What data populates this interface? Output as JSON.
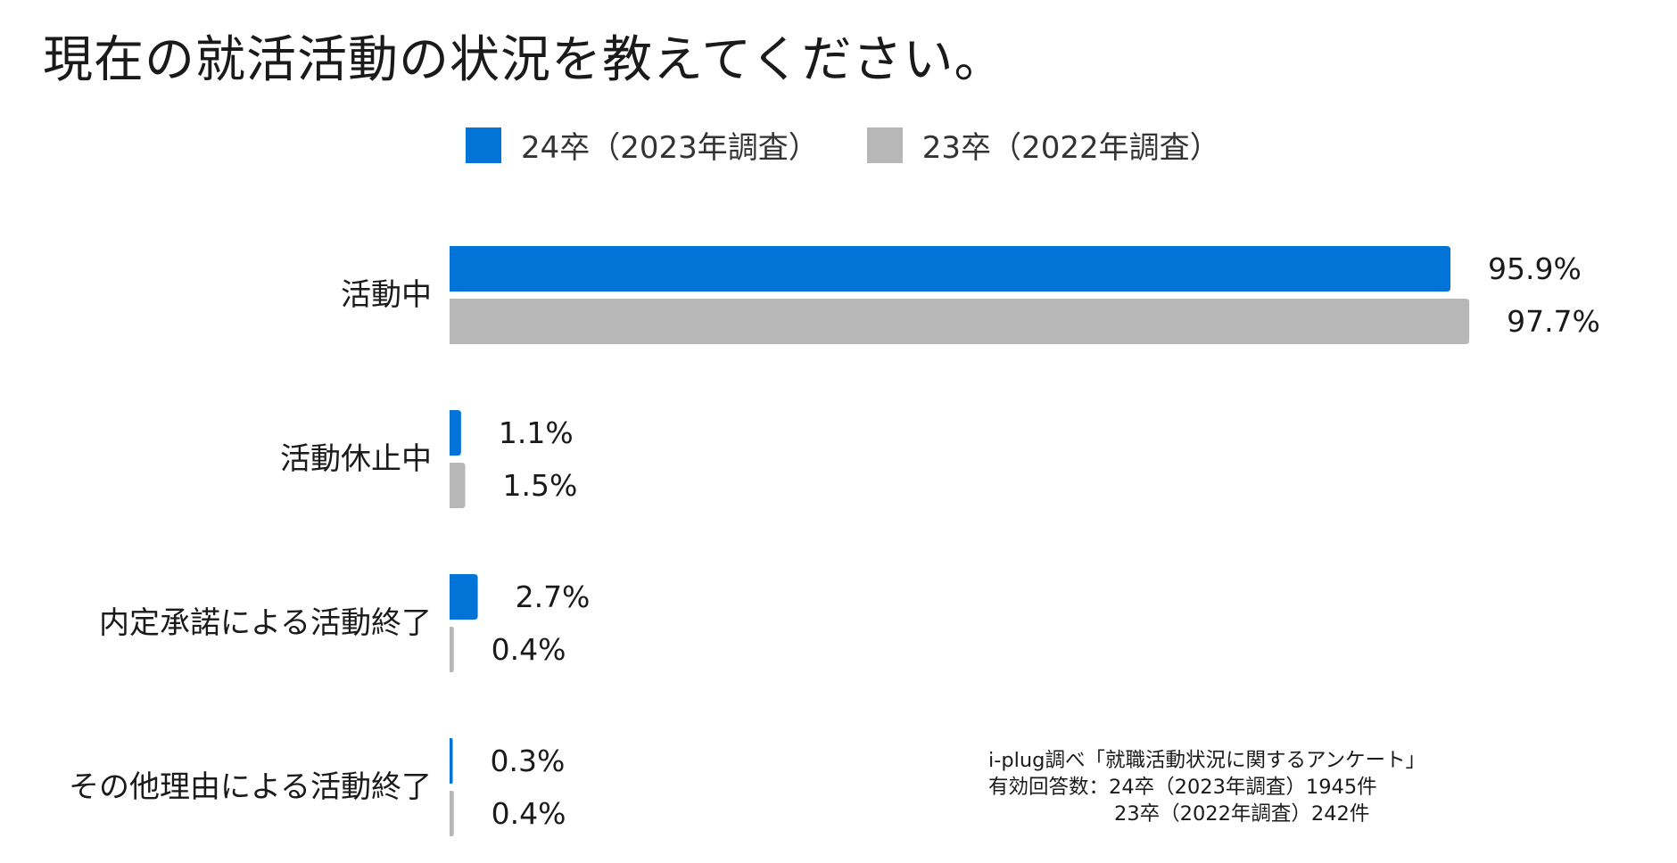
{
  "chart_data": {
    "type": "bar",
    "orientation": "horizontal",
    "title": "現在の就活活動の状況を教えてください。",
    "categories": [
      "活動中",
      "活動休止中",
      "内定承諾による活動終了",
      "その他理由による活動終了"
    ],
    "series": [
      {
        "name": "24卒（2023年調査）",
        "color": "#0274d8",
        "values": [
          95.9,
          1.1,
          2.7,
          0.3
        ],
        "labels": [
          "95.9%",
          "1.1%",
          "2.7%",
          "0.3%"
        ]
      },
      {
        "name": "23卒（2022年調査）",
        "color": "#b7b7b7",
        "values": [
          97.7,
          1.5,
          0.4,
          0.4
        ],
        "labels": [
          "97.7%",
          "1.5%",
          "0.4%",
          "0.4%"
        ]
      }
    ],
    "xlim": [
      0,
      100
    ],
    "legend_position": "top",
    "grid": false
  },
  "footnote": {
    "line1": "i-plug調べ「就職活動状況に関するアンケート」",
    "line2": "有効回答数：24卒（2023年調査）1945件",
    "line3": "23卒（2022年調査）242件"
  }
}
